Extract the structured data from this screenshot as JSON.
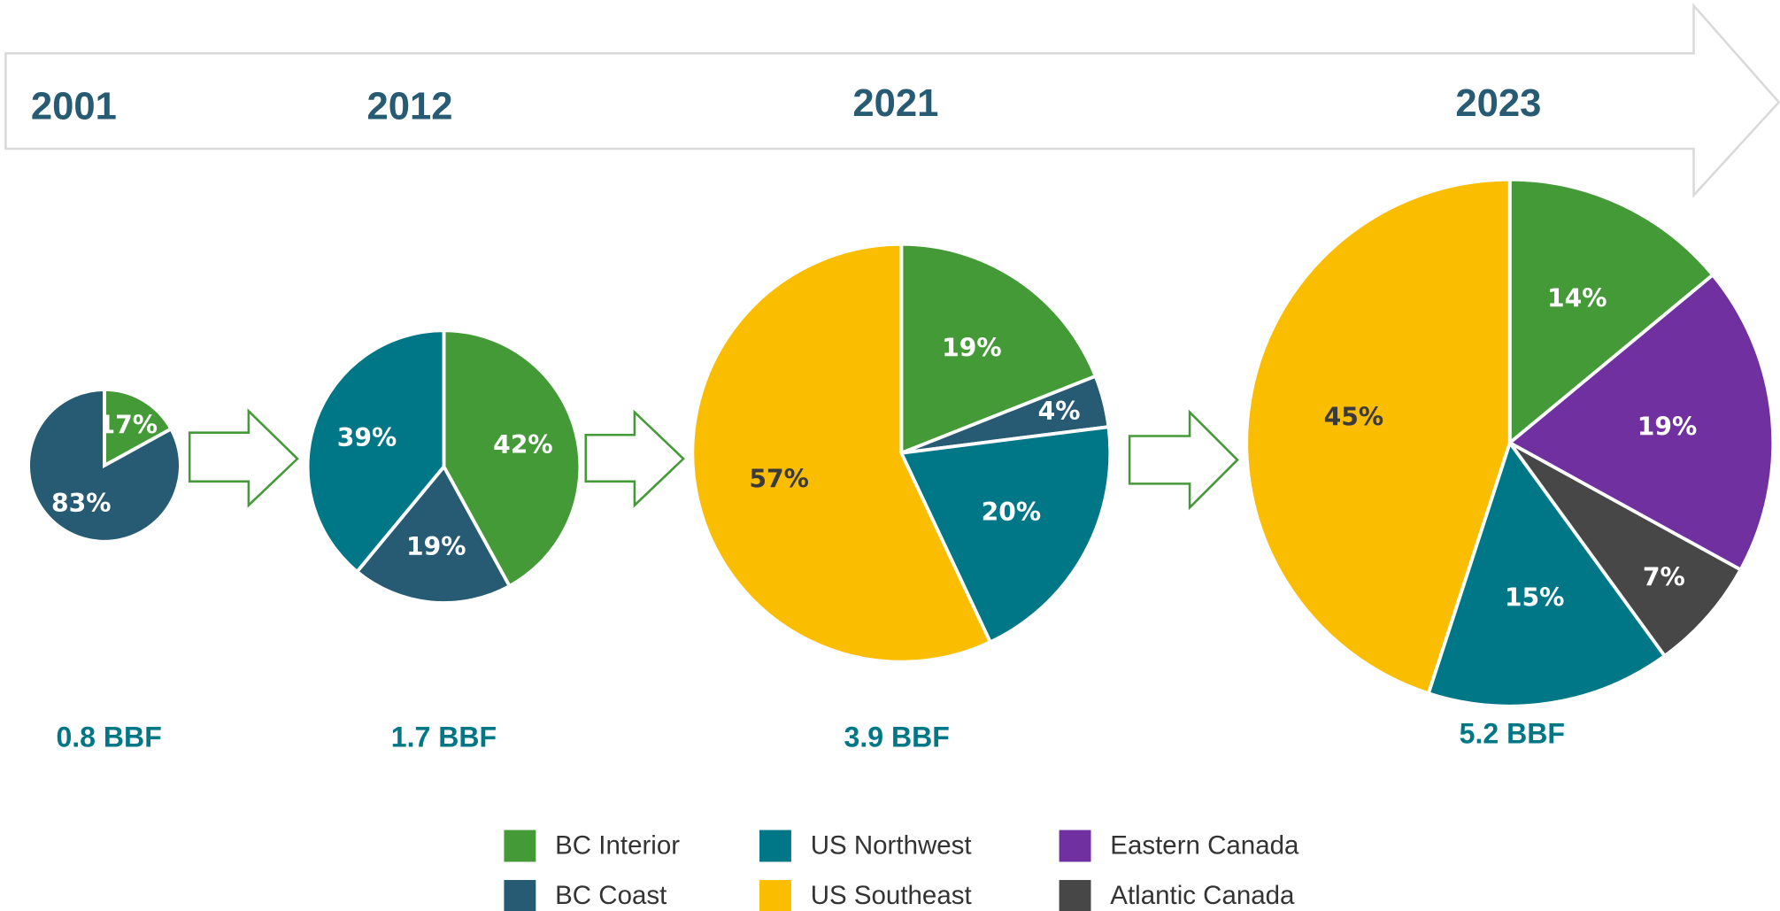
{
  "chart_data": [
    {
      "type": "pie",
      "title": "2001",
      "caption": "0.8 BBF",
      "categories": [
        "BC Interior",
        "BC Coast"
      ],
      "values": [
        17,
        83
      ],
      "value_labels": [
        "17%",
        "83%"
      ],
      "colors": [
        "#459a38",
        "#275a73"
      ]
    },
    {
      "type": "pie",
      "title": "2012",
      "caption": "1.7 BBF",
      "categories": [
        "BC Interior",
        "BC Coast",
        "US Northwest"
      ],
      "values": [
        42,
        19,
        39
      ],
      "value_labels": [
        "42%",
        "19%",
        "39%"
      ],
      "colors": [
        "#459a38",
        "#275a73",
        "#007787"
      ]
    },
    {
      "type": "pie",
      "title": "2021",
      "caption": "3.9 BBF",
      "categories": [
        "BC Interior",
        "BC Coast",
        "US Northwest",
        "US Southeast"
      ],
      "values": [
        19,
        4,
        20,
        57
      ],
      "value_labels": [
        "19%",
        "4%",
        "20%",
        "57%"
      ],
      "colors": [
        "#459a38",
        "#275a73",
        "#007787",
        "#fbbd00"
      ]
    },
    {
      "type": "pie",
      "title": "2023",
      "caption": "5.2 BBF",
      "categories": [
        "BC Interior",
        "Eastern Canada",
        "Atlantic Canada",
        "US Northwest",
        "US Southeast"
      ],
      "values": [
        14,
        19,
        7,
        15,
        45
      ],
      "value_labels": [
        "14%",
        "19%",
        "7%",
        "15%",
        "45%"
      ],
      "colors": [
        "#459a38",
        "#7030a0",
        "#474747",
        "#007787",
        "#fbbd00"
      ]
    }
  ],
  "legend": {
    "names": [
      "BC Interior",
      "BC Coast",
      "US Northwest",
      "US Southeast",
      "Eastern Canada",
      "Atlantic Canada"
    ],
    "colors": [
      "#459a38",
      "#275a73",
      "#007787",
      "#fbbd00",
      "#7030a0",
      "#474747"
    ]
  }
}
